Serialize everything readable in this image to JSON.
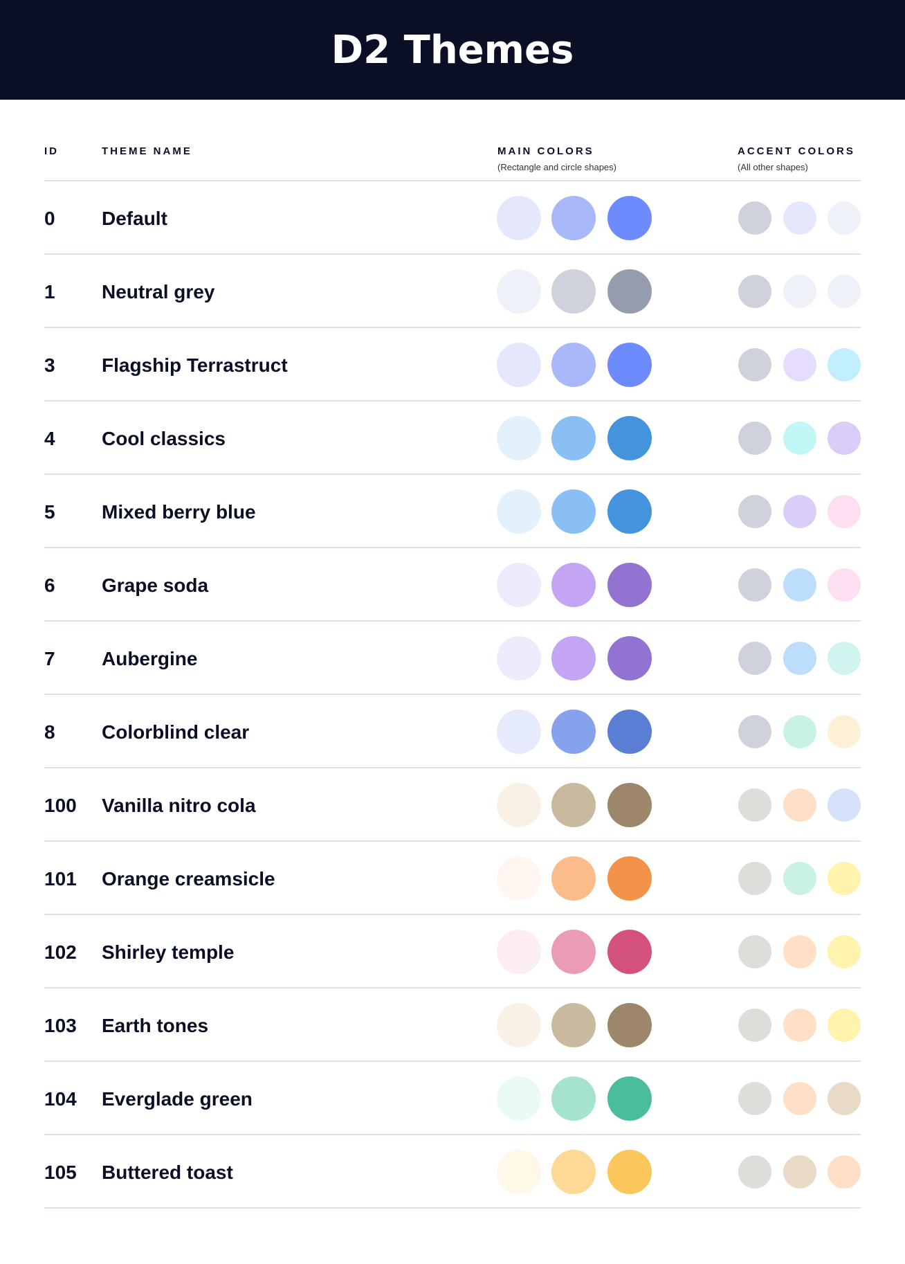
{
  "title": "D2 Themes",
  "headers": {
    "id": "ID",
    "name": "THEME NAME",
    "main": "MAIN COLORS",
    "main_sub": "(Rectangle and circle shapes)",
    "accent": "ACCENT COLORS",
    "accent_sub": "(All other shapes)"
  },
  "themes": [
    {
      "id": "0",
      "name": "Default",
      "main": [
        "#E5E8FD",
        "#A8B8F8",
        "#6D8BFC"
      ],
      "accent": [
        "#CFD2DD",
        "#E5E8FD",
        "#EEF1F8"
      ]
    },
    {
      "id": "1",
      "name": "Neutral grey",
      "main": [
        "#EEF1F8",
        "#CFD2DD",
        "#959CAD"
      ],
      "accent": [
        "#CFD2DD",
        "#EEF1F8",
        "#EEF1F8"
      ]
    },
    {
      "id": "3",
      "name": "Flagship Terrastruct",
      "main": [
        "#E5E8FD",
        "#A8B8F8",
        "#6D8BFC"
      ],
      "accent": [
        "#CFD2DD",
        "#E6DCFE",
        "#C1EFFE"
      ]
    },
    {
      "id": "4",
      "name": "Cool classics",
      "main": [
        "#E3F1FD",
        "#89BFF4",
        "#4393DD"
      ],
      "accent": [
        "#CFD2DD",
        "#C1F8F6",
        "#DACDF7"
      ]
    },
    {
      "id": "5",
      "name": "Mixed berry blue",
      "main": [
        "#E3F1FD",
        "#89BFF4",
        "#4393DD"
      ],
      "accent": [
        "#CFD2DD",
        "#DACDF7",
        "#FDDFF2"
      ]
    },
    {
      "id": "6",
      "name": "Grape soda",
      "main": [
        "#EFEBFD",
        "#C3A5F4",
        "#9373D1"
      ],
      "accent": [
        "#CFD2DD",
        "#BCDDFB",
        "#FDDFF2"
      ]
    },
    {
      "id": "7",
      "name": "Aubergine",
      "main": [
        "#EFEBFD",
        "#C3A5F4",
        "#9373D1"
      ],
      "accent": [
        "#CFD2DD",
        "#BCDDFB",
        "#D2F4F1"
      ]
    },
    {
      "id": "8",
      "name": "Colorblind clear",
      "main": [
        "#E5EAFD",
        "#86A2EC",
        "#5A7ED4"
      ],
      "accent": [
        "#CFD2DD",
        "#C8F2E4",
        "#FEF0D6"
      ]
    },
    {
      "id": "100",
      "name": "Vanilla nitro cola",
      "main": [
        "#F9F1E6",
        "#C9B99F",
        "#9C876B"
      ],
      "accent": [
        "#DEDDDA",
        "#FFE0C7",
        "#D6E1FA"
      ]
    },
    {
      "id": "101",
      "name": "Orange creamsicle",
      "main": [
        "#FFF6F1",
        "#FBBB8B",
        "#F29349"
      ],
      "accent": [
        "#DEDDDA",
        "#C9F2E4",
        "#FFF3AD"
      ]
    },
    {
      "id": "102",
      "name": "Shirley temple",
      "main": [
        "#FCEDF2",
        "#EA9CB6",
        "#D3517D"
      ],
      "accent": [
        "#DEDDDA",
        "#FFE0C7",
        "#FFF3AD"
      ]
    },
    {
      "id": "103",
      "name": "Earth tones",
      "main": [
        "#F9F1E6",
        "#C9B99F",
        "#9C876B"
      ],
      "accent": [
        "#DEDDDA",
        "#FFE0C7",
        "#FFF3AD"
      ]
    },
    {
      "id": "104",
      "name": "Everglade green",
      "main": [
        "#E9FBF4",
        "#A6E3CF",
        "#4ABE9C"
      ],
      "accent": [
        "#DEDDDA",
        "#FFE0C7",
        "#E8DAC7"
      ]
    },
    {
      "id": "105",
      "name": "Buttered toast",
      "main": [
        "#FFF7E7",
        "#FED994",
        "#FBC65C"
      ],
      "accent": [
        "#DEDDDA",
        "#E8DAC7",
        "#FFE0C7"
      ]
    }
  ]
}
